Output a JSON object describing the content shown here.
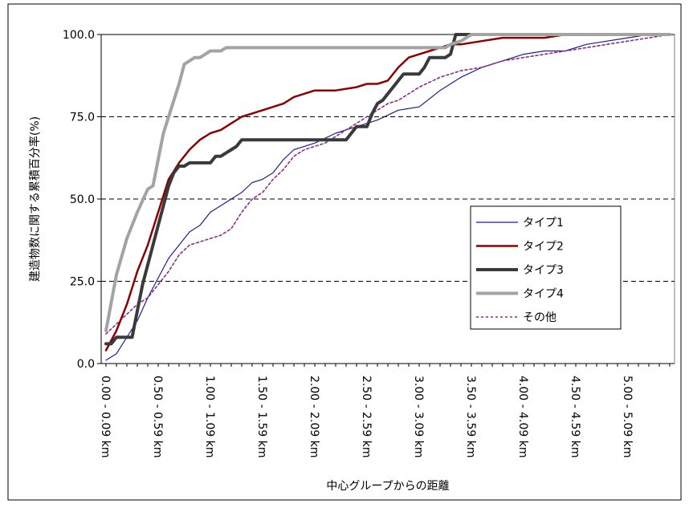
{
  "chart_data": {
    "type": "line",
    "title": "",
    "xlabel": "中心グループからの距離",
    "ylabel": "建造物数に関する累積百分率(%)",
    "ylim": [
      0,
      100
    ],
    "yticks": [
      "0.0",
      "25.0",
      "50.0",
      "75.0",
      "100.0"
    ],
    "grid": "horizontal dashed",
    "legend_position": "right",
    "categories": [
      "0.00 - 0.09 km",
      "0.50 - 0.59 km",
      "1.00 - 1.09 km",
      "1.50 - 1.59 km",
      "2.00 - 2.09 km",
      "2.50 - 2.59 km",
      "3.00 - 3.09 km",
      "3.50 - 3.59 km",
      "4.00 - 4.09 km",
      "4.50 - 4.59 km",
      "5.00 - 5.09 km"
    ],
    "series": [
      {
        "name": "タイプ1",
        "color": "#1f1f8f",
        "style": "solid-thin",
        "x": [
          0,
          0.1,
          0.2,
          0.3,
          0.4,
          0.5,
          0.6,
          0.7,
          0.8,
          0.9,
          1.0,
          1.1,
          1.2,
          1.3,
          1.4,
          1.5,
          1.6,
          1.7,
          1.8,
          1.9,
          2.0,
          2.2,
          2.4,
          2.6,
          2.8,
          3.0,
          3.2,
          3.4,
          3.6,
          3.8,
          4.0,
          4.2,
          4.4,
          4.6,
          4.8,
          5.0,
          5.2,
          5.4
        ],
        "y": [
          1,
          3,
          8,
          13,
          20,
          26,
          32,
          36,
          40,
          42,
          46,
          48,
          50,
          52,
          55,
          56,
          58,
          62,
          65,
          66,
          67,
          70,
          72,
          74,
          77,
          78,
          83,
          87,
          90,
          92,
          94,
          95,
          95,
          97,
          98,
          99,
          100,
          100
        ]
      },
      {
        "name": "タイプ2",
        "color": "#8b0000",
        "style": "solid-medium",
        "x": [
          0,
          0.1,
          0.2,
          0.3,
          0.4,
          0.5,
          0.6,
          0.7,
          0.8,
          0.9,
          1.0,
          1.1,
          1.2,
          1.3,
          1.4,
          1.5,
          1.6,
          1.7,
          1.8,
          1.9,
          2.0,
          2.2,
          2.4,
          2.5,
          2.6,
          2.7,
          2.8,
          2.9,
          3.0,
          3.1,
          3.2,
          3.3,
          3.4,
          3.6,
          3.8,
          4.0,
          4.2,
          4.4,
          4.6,
          4.8,
          5.0,
          5.2,
          5.4
        ],
        "y": [
          4,
          10,
          18,
          28,
          36,
          46,
          56,
          61,
          65,
          68,
          70,
          71,
          73,
          75,
          76,
          77,
          78,
          79,
          81,
          82,
          83,
          83,
          84,
          85,
          85,
          86,
          90,
          93,
          94,
          95,
          96,
          97,
          97,
          98,
          99,
          99,
          99,
          100,
          100,
          100,
          100,
          100,
          100
        ]
      },
      {
        "name": "タイプ3",
        "color": "#3a3a3a",
        "style": "solid-thick",
        "x": [
          0,
          0.05,
          0.1,
          0.15,
          0.2,
          0.25,
          0.3,
          0.35,
          0.4,
          0.45,
          0.5,
          0.55,
          0.6,
          0.65,
          0.7,
          0.75,
          0.8,
          0.85,
          0.9,
          0.95,
          1.0,
          1.05,
          1.1,
          1.15,
          1.2,
          1.25,
          1.3,
          1.35,
          1.4,
          1.5,
          1.6,
          1.7,
          1.8,
          1.9,
          2.0,
          2.1,
          2.2,
          2.3,
          2.4,
          2.5,
          2.55,
          2.6,
          2.65,
          2.7,
          2.75,
          2.8,
          2.85,
          2.9,
          2.95,
          3.0,
          3.05,
          3.1,
          3.15,
          3.2,
          3.25,
          3.3,
          3.35,
          3.4,
          3.45,
          3.5,
          3.55,
          3.6,
          3.65,
          3.7,
          4.0,
          4.5,
          5.0,
          5.4
        ],
        "y": [
          6,
          6,
          8,
          8,
          8,
          8,
          16,
          24,
          30,
          36,
          42,
          48,
          54,
          58,
          60,
          60,
          61,
          61,
          61,
          61,
          61,
          63,
          63,
          64,
          65,
          66,
          68,
          68,
          68,
          68,
          68,
          68,
          68,
          68,
          68,
          68,
          68,
          68,
          72,
          72,
          76,
          79,
          80,
          82,
          84,
          86,
          88,
          88,
          88,
          88,
          90,
          93,
          93,
          93,
          93,
          94,
          100,
          100,
          100,
          100,
          100,
          100,
          100,
          100,
          100,
          100,
          100,
          100
        ]
      },
      {
        "name": "タイプ4",
        "color": "#a3a3a3",
        "style": "solid-thick",
        "x": [
          0,
          0.1,
          0.2,
          0.3,
          0.4,
          0.45,
          0.5,
          0.55,
          0.6,
          0.65,
          0.7,
          0.75,
          0.8,
          0.85,
          0.9,
          0.95,
          1.0,
          1.05,
          1.1,
          1.15,
          1.2,
          1.25,
          1.3,
          1.35,
          1.4,
          1.5,
          1.6,
          1.7,
          1.8,
          1.9,
          2.0,
          2.1,
          2.2,
          2.3,
          2.4,
          2.5,
          2.6,
          2.7,
          2.8,
          2.9,
          3.0,
          3.1,
          3.2,
          3.25,
          3.3,
          3.4,
          3.5,
          3.6,
          4.0,
          4.5,
          5.0,
          5.4
        ],
        "y": [
          10,
          27,
          38,
          46,
          53,
          54,
          62,
          70,
          75,
          80,
          85,
          91,
          92,
          93,
          93,
          94,
          95,
          95,
          95,
          96,
          96,
          96,
          96,
          96,
          96,
          96,
          96,
          96,
          96,
          96,
          96,
          96,
          96,
          96,
          96,
          96,
          96,
          96,
          96,
          96,
          96,
          96,
          96,
          96,
          97,
          98,
          100,
          100,
          100,
          100,
          100,
          100
        ]
      },
      {
        "name": "その他",
        "color": "#8b2c8b",
        "style": "dotted",
        "x": [
          0,
          0.1,
          0.2,
          0.3,
          0.4,
          0.5,
          0.6,
          0.7,
          0.8,
          0.9,
          1.0,
          1.1,
          1.2,
          1.3,
          1.4,
          1.5,
          1.6,
          1.7,
          1.8,
          1.9,
          2.0,
          2.1,
          2.2,
          2.3,
          2.4,
          2.5,
          2.6,
          2.7,
          2.8,
          2.9,
          3.0,
          3.2,
          3.4,
          3.6,
          3.8,
          4.0,
          4.2,
          4.4,
          4.6,
          4.8,
          5.0,
          5.2,
          5.4
        ],
        "y": [
          9,
          12,
          15,
          18,
          20,
          24,
          28,
          33,
          36,
          37,
          38,
          39,
          41,
          46,
          50,
          52,
          56,
          59,
          63,
          65,
          66,
          67,
          69,
          71,
          73,
          75,
          77,
          79,
          80,
          82,
          84,
          87,
          89,
          90,
          92,
          93,
          94,
          95,
          96,
          97,
          98,
          99,
          100
        ]
      }
    ]
  }
}
